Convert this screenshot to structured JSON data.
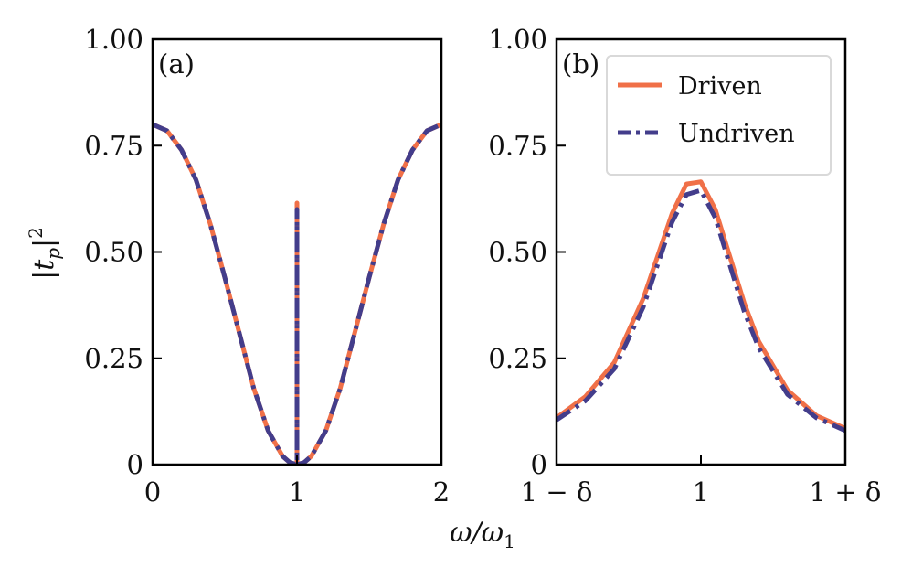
{
  "chart_data": [
    {
      "panel": "(a)",
      "type": "line",
      "xlim": [
        0,
        2
      ],
      "ylim": [
        0,
        1
      ],
      "xticks": [
        {
          "value": 0,
          "label": "0"
        },
        {
          "value": 1,
          "label": "1"
        },
        {
          "value": 2,
          "label": "2"
        }
      ],
      "yticks": [
        {
          "value": 0,
          "label": "0"
        },
        {
          "value": 0.25,
          "label": "0.25"
        },
        {
          "value": 0.5,
          "label": "0.50"
        },
        {
          "value": 0.75,
          "label": "0.75"
        },
        {
          "value": 1.0,
          "label": "1.00"
        }
      ],
      "ylabel": "|t_p|^2",
      "xlabel": "ω/ω_1",
      "grid": false,
      "series": [
        {
          "name": "Driven",
          "color": "#f07048",
          "style": "solid",
          "x": [
            0,
            0.1,
            0.2,
            0.3,
            0.4,
            0.5,
            0.6,
            0.7,
            0.8,
            0.9,
            0.95,
            1.0,
            1.0,
            1.0,
            1.05,
            1.1,
            1.2,
            1.3,
            1.4,
            1.5,
            1.6,
            1.7,
            1.8,
            1.9,
            2.0
          ],
          "y": [
            0.8,
            0.785,
            0.74,
            0.67,
            0.565,
            0.44,
            0.31,
            0.18,
            0.08,
            0.02,
            0.005,
            0.0,
            0.615,
            0.0,
            0.005,
            0.02,
            0.08,
            0.18,
            0.31,
            0.44,
            0.565,
            0.67,
            0.74,
            0.785,
            0.8
          ]
        },
        {
          "name": "Undriven",
          "color": "#433d8b",
          "style": "dashdot",
          "x": [
            0,
            0.1,
            0.2,
            0.3,
            0.4,
            0.5,
            0.6,
            0.7,
            0.8,
            0.9,
            0.95,
            1.0,
            1.0,
            1.0,
            1.05,
            1.1,
            1.2,
            1.3,
            1.4,
            1.5,
            1.6,
            1.7,
            1.8,
            1.9,
            2.0
          ],
          "y": [
            0.8,
            0.785,
            0.74,
            0.67,
            0.565,
            0.44,
            0.31,
            0.18,
            0.08,
            0.02,
            0.005,
            0.0,
            0.6,
            0.0,
            0.005,
            0.02,
            0.08,
            0.18,
            0.31,
            0.44,
            0.565,
            0.67,
            0.74,
            0.785,
            0.8
          ]
        }
      ]
    },
    {
      "panel": "(b)",
      "type": "line",
      "xlim": [
        -1,
        1
      ],
      "ylim": [
        0,
        1
      ],
      "xticks": [
        {
          "value": -1,
          "label": "1 − δ"
        },
        {
          "value": 0,
          "label": "1"
        },
        {
          "value": 1,
          "label": "1 + δ"
        }
      ],
      "yticks": [
        {
          "value": 0,
          "label": "0"
        },
        {
          "value": 0.25,
          "label": "0.25"
        },
        {
          "value": 0.5,
          "label": "0.50"
        },
        {
          "value": 0.75,
          "label": "0.75"
        },
        {
          "value": 1.0,
          "label": "1.00"
        }
      ],
      "xlabel": "ω/ω_1",
      "legend": "top-right",
      "grid": false,
      "series": [
        {
          "name": "Driven",
          "color": "#f07048",
          "style": "solid",
          "x": [
            -1.0,
            -0.8,
            -0.6,
            -0.4,
            -0.3,
            -0.2,
            -0.1,
            0.0,
            0.1,
            0.2,
            0.3,
            0.4,
            0.6,
            0.8,
            1.0
          ],
          "y": [
            0.11,
            0.16,
            0.24,
            0.39,
            0.49,
            0.59,
            0.66,
            0.665,
            0.6,
            0.49,
            0.38,
            0.29,
            0.175,
            0.115,
            0.085
          ]
        },
        {
          "name": "Undriven",
          "color": "#433d8b",
          "style": "dashdot",
          "x": [
            -1.0,
            -0.8,
            -0.6,
            -0.4,
            -0.3,
            -0.2,
            -0.1,
            0.0,
            0.1,
            0.2,
            0.3,
            0.4,
            0.6,
            0.8,
            1.0
          ],
          "y": [
            0.105,
            0.15,
            0.225,
            0.37,
            0.47,
            0.57,
            0.635,
            0.645,
            0.58,
            0.47,
            0.36,
            0.275,
            0.165,
            0.11,
            0.08
          ]
        }
      ]
    }
  ]
}
